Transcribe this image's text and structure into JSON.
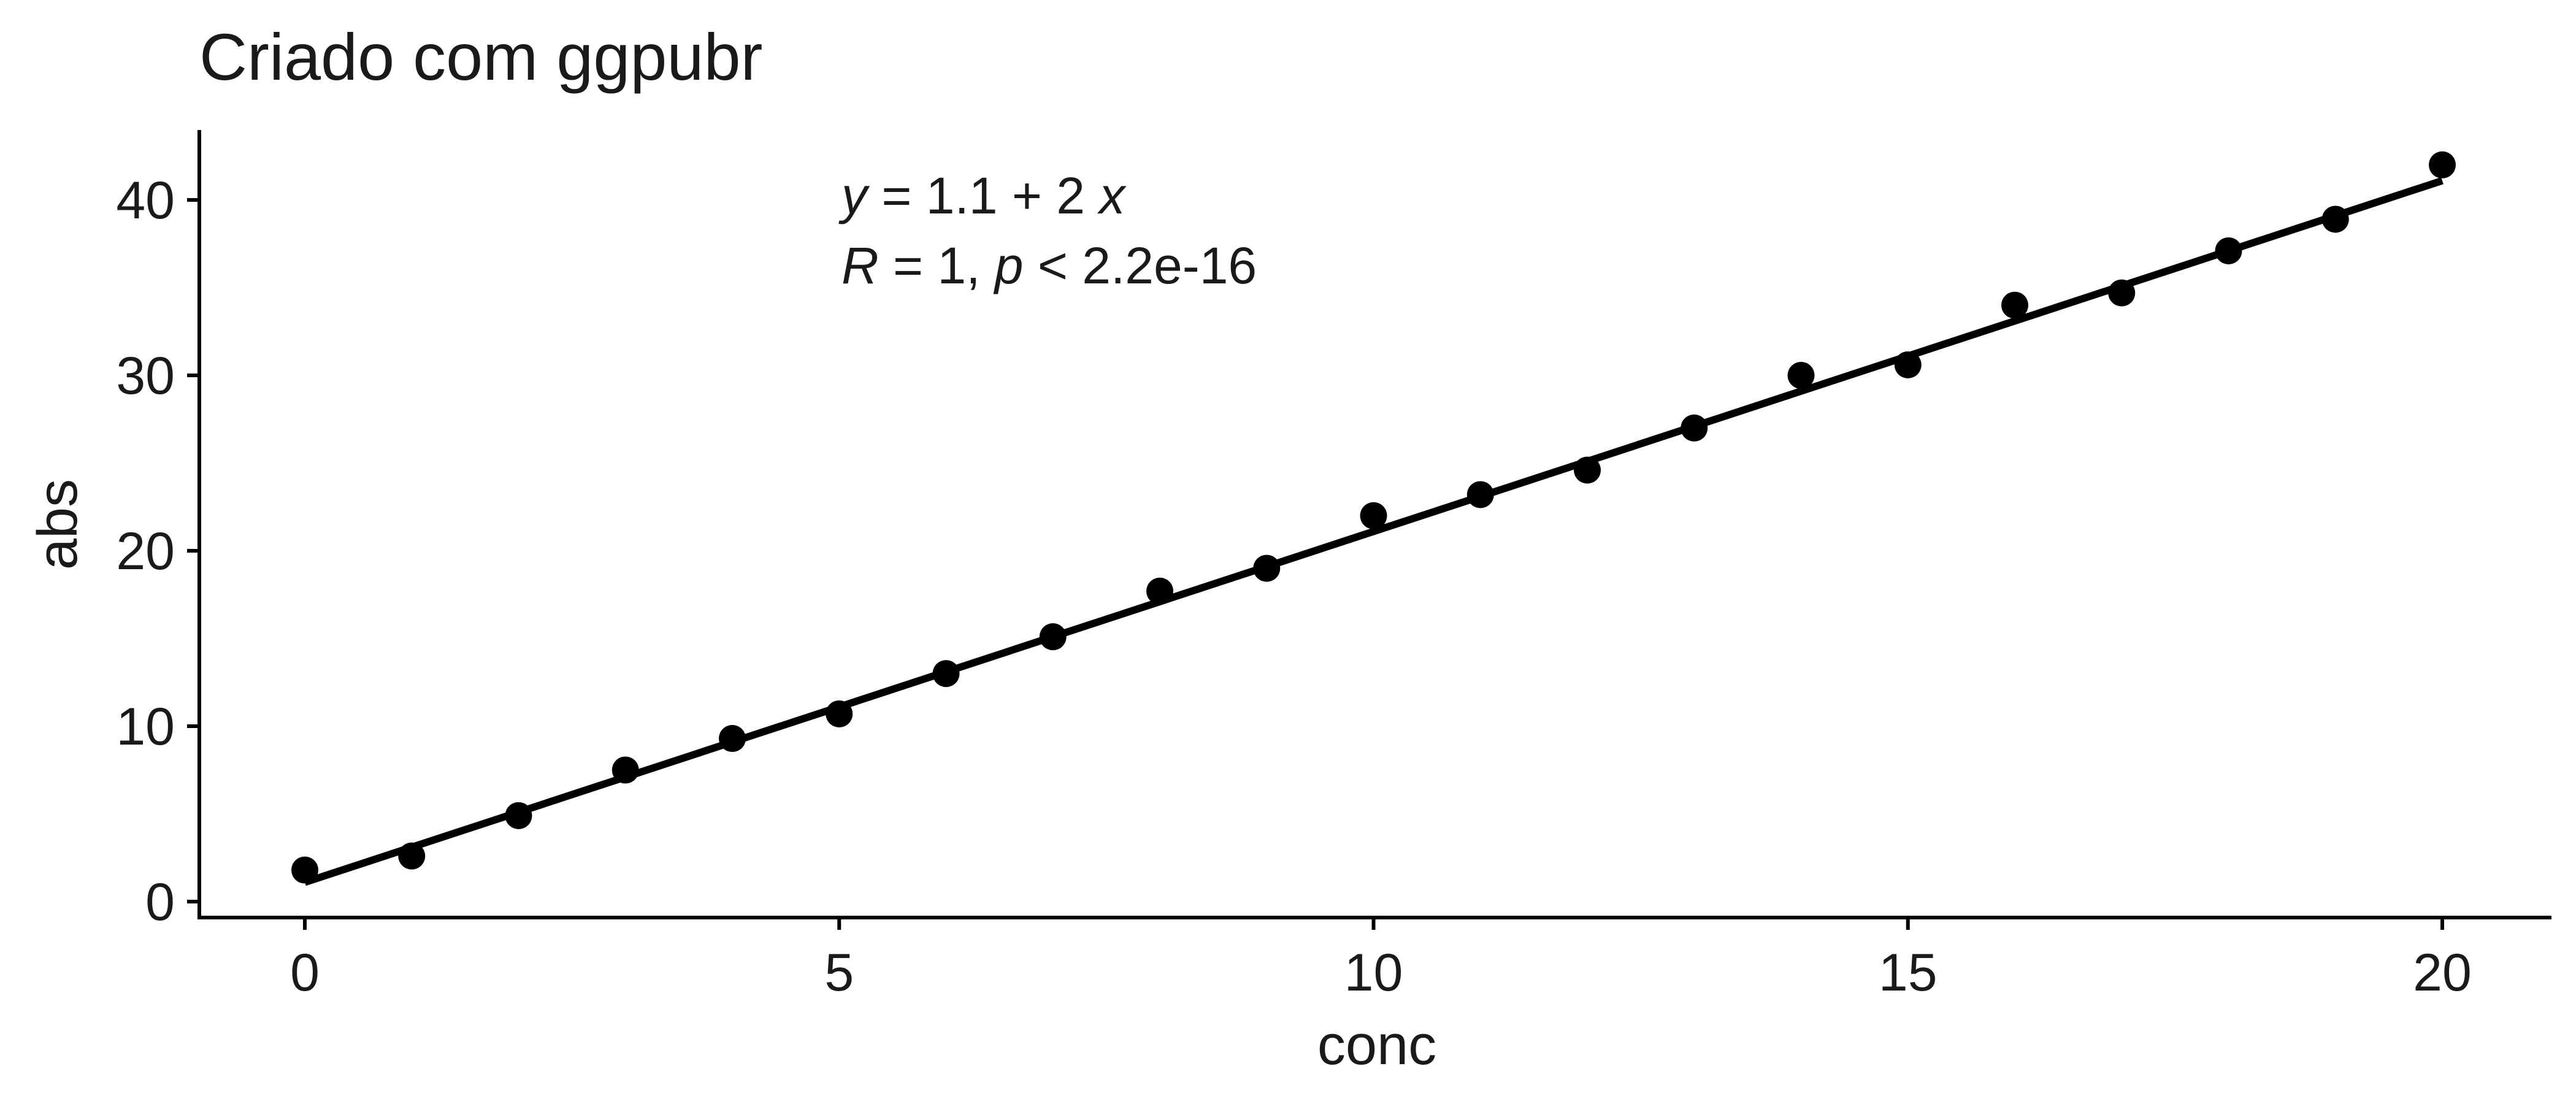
{
  "chart_data": {
    "type": "scatter",
    "title": "Criado com ggpubr",
    "xlabel": "conc",
    "ylabel": "abs",
    "xlim": [
      -1,
      21
    ],
    "ylim": [
      -1,
      44
    ],
    "xticks": [
      0,
      5,
      10,
      15,
      20
    ],
    "yticks": [
      0,
      10,
      20,
      30,
      40
    ],
    "grid": false,
    "series": [
      {
        "x": [
          0,
          1,
          2,
          3,
          4,
          5,
          6,
          7,
          8,
          9,
          10,
          11,
          12,
          13,
          14,
          15,
          16,
          17,
          18,
          19,
          20
        ],
        "y": [
          1.8,
          2.6,
          4.9,
          7.5,
          9.3,
          10.7,
          13.0,
          15.1,
          17.7,
          19.0,
          22.0,
          23.2,
          24.6,
          27.0,
          30.0,
          30.6,
          34.0,
          34.7,
          37.1,
          38.9,
          42.0
        ]
      }
    ],
    "regression": {
      "intercept": 1.1,
      "slope": 2,
      "x_range": [
        0,
        20
      ]
    },
    "annotation": {
      "equation": {
        "y_var": "y",
        "rest": " = 1.1 + 2 ",
        "x_var": "x"
      },
      "stats": {
        "r_var": "R",
        "mid": " = 1, ",
        "p_var": "p",
        "tail": " < 2.2e-16"
      }
    }
  }
}
